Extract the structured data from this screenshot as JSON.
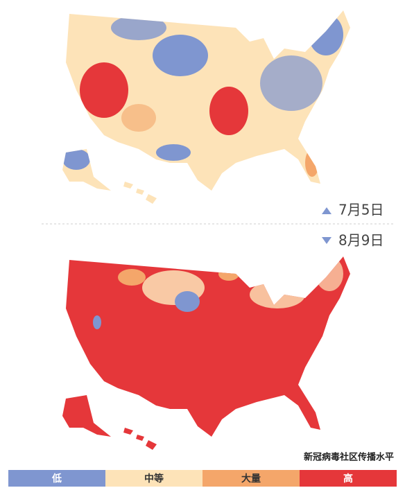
{
  "maps": [
    {
      "date": "7月5日"
    },
    {
      "date": "8月9日"
    }
  ],
  "legend": {
    "title": "新冠病毒社区传播水平",
    "items": [
      {
        "label": "低",
        "color": "#7f96d0"
      },
      {
        "label": "中等",
        "color": "#fde3b8"
      },
      {
        "label": "大量",
        "color": "#f4a66a"
      },
      {
        "label": "高",
        "color": "#e5373a"
      }
    ]
  }
}
